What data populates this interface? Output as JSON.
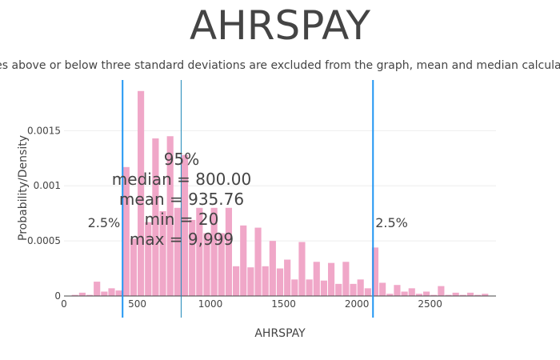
{
  "chart_data": {
    "type": "bar",
    "title": "AHRSPAY",
    "subtitle": "Values above or below three standard deviations are excluded from the graph, mean and median calculations",
    "xlabel": "AHRSPAY",
    "ylabel": "Probability/Density",
    "xlim": [
      0,
      2950
    ],
    "ylim": [
      0,
      0.00196
    ],
    "x_ticks": [
      "0",
      "500",
      "1000",
      "1500",
      "2000",
      "2500"
    ],
    "x_tick_values": [
      0,
      500,
      1000,
      1500,
      2000,
      2500
    ],
    "y_ticks": [
      "0",
      "0.0005",
      "0.001",
      "0.0015"
    ],
    "y_tick_values": [
      0,
      0.0005,
      0.001,
      0.0015
    ],
    "bin_width": 50,
    "bin_starts": [
      50,
      100,
      150,
      200,
      250,
      300,
      350,
      400,
      450,
      500,
      550,
      600,
      650,
      700,
      750,
      800,
      850,
      900,
      950,
      1000,
      1050,
      1100,
      1150,
      1200,
      1250,
      1300,
      1350,
      1400,
      1450,
      1500,
      1550,
      1600,
      1650,
      1700,
      1750,
      1800,
      1850,
      1900,
      1950,
      2000,
      2050,
      2100,
      2150,
      2200,
      2250,
      2300,
      2350,
      2400,
      2450,
      2500,
      2550,
      2600,
      2650,
      2700,
      2750,
      2800,
      2850
    ],
    "values": [
      1e-05,
      3e-05,
      1e-05,
      0.00013,
      4e-05,
      7e-05,
      5e-05,
      0.00117,
      0.00052,
      0.00186,
      0.00067,
      0.00143,
      0.00077,
      0.00145,
      0.0008,
      0.00128,
      0.00069,
      0.0008,
      0.00057,
      0.0008,
      0.00057,
      0.0008,
      0.00027,
      0.00064,
      0.00026,
      0.00062,
      0.00027,
      0.0005,
      0.00025,
      0.00033,
      0.00015,
      0.00049,
      0.00015,
      0.00031,
      0.00014,
      0.0003,
      0.00011,
      0.00031,
      0.00011,
      0.00015,
      7e-05,
      0.00044,
      0.00012,
      2e-05,
      0.0001,
      4e-05,
      7e-05,
      2e-05,
      4e-05,
      1e-05,
      9e-05,
      1e-05,
      3e-05,
      1e-05,
      3e-05,
      1e-05,
      2e-05
    ],
    "bar_color": "#f0a7c8",
    "grid": true,
    "lines": [
      {
        "x": 400,
        "label": "2.5%",
        "label_side": "left",
        "color": "#2196f3"
      },
      {
        "x": 800,
        "label": "",
        "label_side": "none",
        "color": "#1e88b8"
      },
      {
        "x": 2110,
        "label": "2.5%",
        "label_side": "right",
        "color": "#2196f3"
      }
    ],
    "annotations": [
      "95%",
      "median = 800.00",
      "mean = 935.76",
      "min = 20",
      "max = 9,999"
    ]
  }
}
